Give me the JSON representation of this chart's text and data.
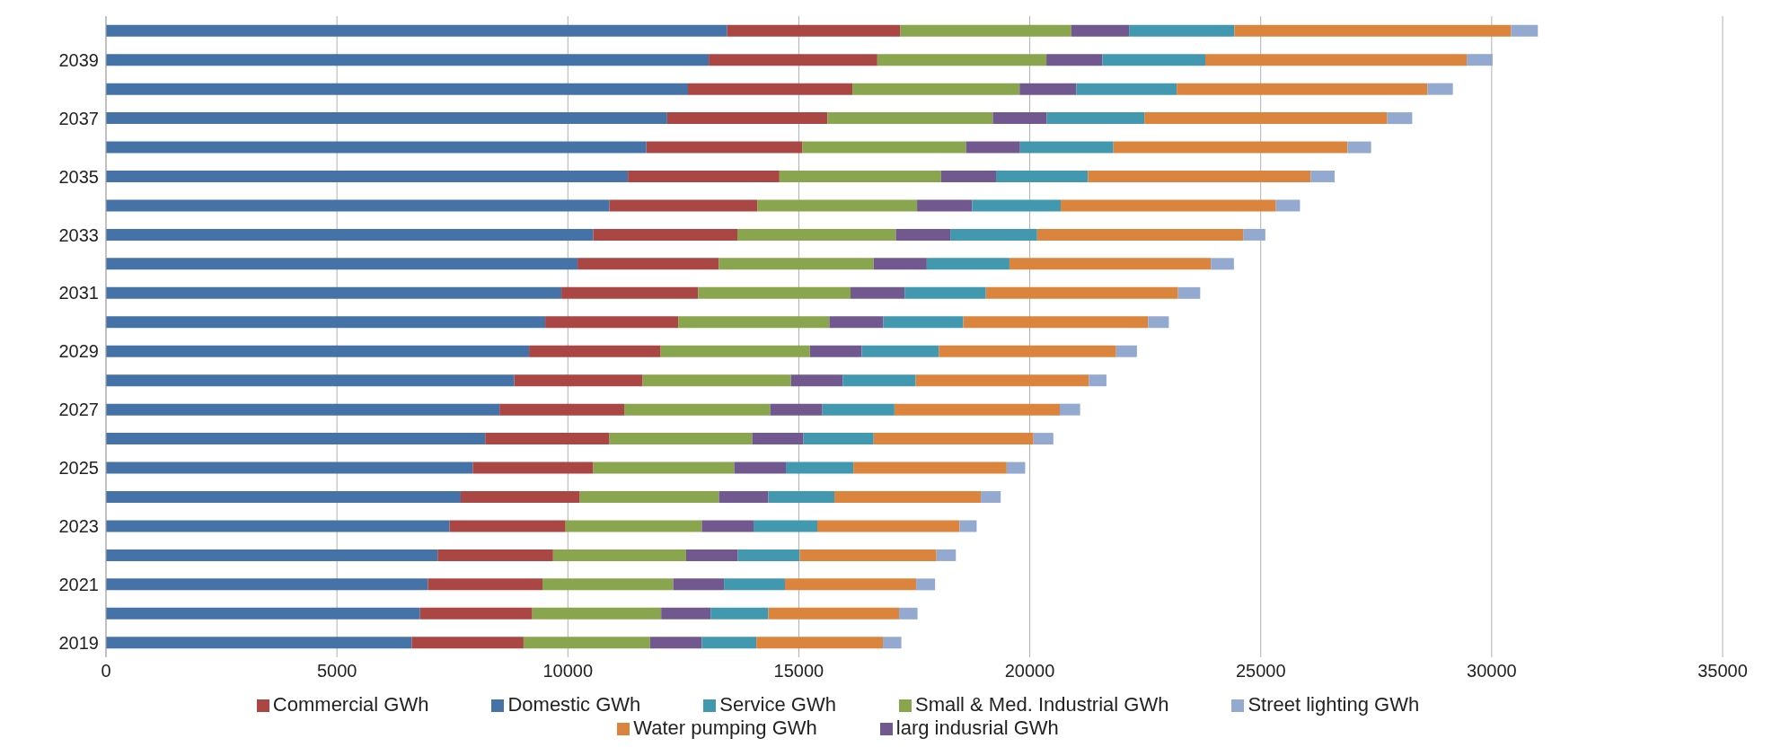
{
  "chart_data": {
    "type": "bar",
    "orientation": "horizontal",
    "stacked": true,
    "categories": [
      null,
      "2039",
      null,
      "2037",
      null,
      "2035",
      null,
      "2033",
      null,
      "2031",
      null,
      "2029",
      null,
      "2027",
      null,
      "2025",
      null,
      "2023",
      null,
      "2021",
      null,
      "2019"
    ],
    "series": [
      {
        "name": "Domestic GWh",
        "color": "#4572a7",
        "values": [
          13450,
          13050,
          12600,
          12150,
          11700,
          11300,
          10900,
          10550,
          10210,
          9860,
          9510,
          9160,
          8840,
          8520,
          8210,
          7940,
          7680,
          7440,
          7180,
          6970,
          6800,
          6620
        ]
      },
      {
        "name": "Commercial GWh",
        "color": "#aa4643",
        "values": [
          3750,
          3650,
          3560,
          3470,
          3380,
          3280,
          3200,
          3120,
          3060,
          2960,
          2880,
          2850,
          2780,
          2700,
          2690,
          2610,
          2580,
          2510,
          2500,
          2480,
          2430,
          2420
        ]
      },
      {
        "name": "Small & Med. Industrial GWh",
        "color": "#89a54e",
        "values": [
          3700,
          3660,
          3620,
          3580,
          3540,
          3500,
          3460,
          3430,
          3350,
          3300,
          3270,
          3230,
          3210,
          3160,
          3090,
          3050,
          3010,
          2950,
          2880,
          2830,
          2790,
          2740
        ]
      },
      {
        "name": "larg indusrial GWh",
        "color": "#71588f",
        "values": [
          1250,
          1210,
          1230,
          1170,
          1170,
          1190,
          1190,
          1180,
          1150,
          1170,
          1170,
          1120,
          1120,
          1130,
          1110,
          1120,
          1070,
          1120,
          1120,
          1100,
          1070,
          1120
        ]
      },
      {
        "name": "Service GWh",
        "color": "#4198af",
        "values": [
          2280,
          2230,
          2170,
          2110,
          2020,
          1990,
          1920,
          1880,
          1790,
          1760,
          1730,
          1670,
          1580,
          1560,
          1520,
          1460,
          1430,
          1380,
          1340,
          1320,
          1250,
          1180
        ]
      },
      {
        "name": "Water pumping GWh",
        "color": "#db843d",
        "values": [
          5990,
          5660,
          5430,
          5260,
          5070,
          4820,
          4660,
          4460,
          4360,
          4160,
          4000,
          3840,
          3750,
          3580,
          3460,
          3320,
          3170,
          3080,
          2960,
          2840,
          2830,
          2740
        ]
      },
      {
        "name": "Street lighting GWh",
        "color": "#93a9cf",
        "values": [
          580,
          560,
          550,
          540,
          510,
          520,
          520,
          480,
          500,
          480,
          450,
          450,
          380,
          440,
          430,
          400,
          430,
          370,
          420,
          410,
          400,
          400
        ]
      }
    ],
    "xlim": [
      0,
      35000
    ],
    "xticks": [
      0,
      5000,
      10000,
      15000,
      20000,
      25000,
      30000,
      35000
    ],
    "grid": "x",
    "legend": "bottom"
  }
}
